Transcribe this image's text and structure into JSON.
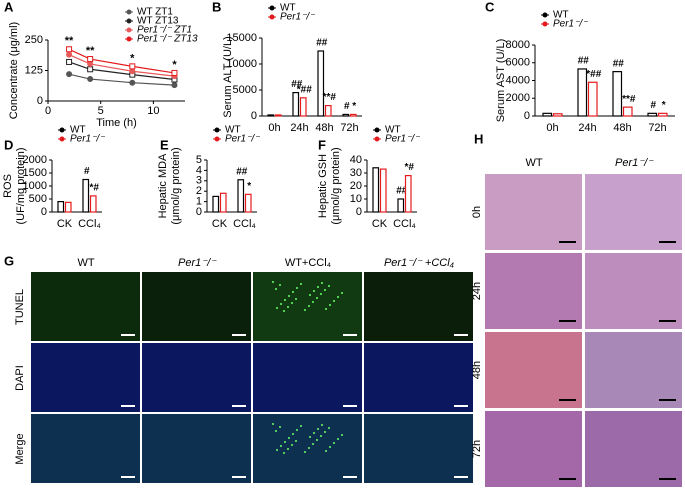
{
  "chart_data": [
    {
      "type": "line",
      "panel": "A",
      "xlabel": "Time (h)",
      "ylabel": [
        "Concentrate (μg/ml)"
      ],
      "x": [
        2,
        4,
        8,
        12
      ],
      "xlim": [
        0,
        13
      ],
      "xticks": [
        0,
        5,
        10
      ],
      "ylim": [
        0,
        250
      ],
      "yticks": [
        0,
        125,
        250
      ],
      "annotations": [
        "**",
        "**",
        "*",
        "*"
      ],
      "series": [
        {
          "name": "WT ZT1",
          "color": "#555555",
          "marker": "circle",
          "values": [
            110,
            90,
            75,
            65
          ]
        },
        {
          "name": "WT ZT13",
          "color": "#222222",
          "marker": "square",
          "values": [
            160,
            130,
            108,
            88
          ]
        },
        {
          "name": "Per1⁻/⁻ ZT1",
          "color": "#e8595a",
          "marker": "circle",
          "values": [
            190,
            152,
            122,
            102
          ]
        },
        {
          "name": "Per1⁻/⁻ ZT13",
          "color": "#e41a1c",
          "marker": "square",
          "values": [
            212,
            172,
            142,
            115
          ]
        }
      ]
    },
    {
      "type": "bar",
      "panel": "B",
      "ylabel": [
        "Serum ALT (U/L)"
      ],
      "categories": [
        "0h",
        "24h",
        "48h",
        "72h"
      ],
      "ylim": [
        0,
        15000
      ],
      "yticks": [
        0,
        5000,
        10000,
        15000
      ],
      "series": [
        {
          "name": "WT",
          "color": "#000000",
          "values": [
            200,
            4500,
            12500,
            300
          ],
          "significance": [
            null,
            "##",
            "##",
            "#"
          ]
        },
        {
          "name": "Per1⁻/⁻",
          "color": "#e41a1c",
          "values": [
            200,
            3500,
            2000,
            300
          ],
          "significance": [
            null,
            "*##",
            "**#",
            "*"
          ]
        }
      ]
    },
    {
      "type": "bar",
      "panel": "C",
      "ylabel": [
        "Serum AST (U/L)"
      ],
      "categories": [
        "0h",
        "24h",
        "48h",
        "72h"
      ],
      "ylim": [
        0,
        8000
      ],
      "yticks": [
        0,
        2000,
        4000,
        6000,
        8000
      ],
      "series": [
        {
          "name": "WT",
          "color": "#000000",
          "values": [
            300,
            5300,
            5000,
            300
          ],
          "significance": [
            null,
            "##",
            "##",
            "#"
          ]
        },
        {
          "name": "Per1⁻/⁻",
          "color": "#e41a1c",
          "values": [
            250,
            3800,
            1000,
            300
          ],
          "significance": [
            null,
            "*##",
            "**#",
            "*"
          ]
        }
      ]
    },
    {
      "type": "bar",
      "panel": "D",
      "ylabel": [
        "ROS",
        "(UF/mg protein)"
      ],
      "categories": [
        "CK",
        "CCl₄"
      ],
      "ylim": [
        0,
        2000
      ],
      "yticks": [
        0,
        500,
        1000,
        1500,
        2000
      ],
      "series": [
        {
          "name": "WT",
          "color": "#000000",
          "values": [
            400,
            1250
          ],
          "significance": [
            null,
            "#"
          ]
        },
        {
          "name": "Per1⁻/⁻",
          "color": "#e41a1c",
          "values": [
            370,
            620
          ],
          "significance": [
            null,
            "*#"
          ]
        }
      ]
    },
    {
      "type": "bar",
      "panel": "E",
      "ylabel": [
        "Hepatic MDA",
        "(μmol/g protein)"
      ],
      "categories": [
        "CK",
        "CCl₄"
      ],
      "ylim": [
        0,
        5
      ],
      "yticks": [
        0,
        1,
        2,
        3,
        4,
        5
      ],
      "series": [
        {
          "name": "WT",
          "color": "#000000",
          "values": [
            1.5,
            3.1
          ],
          "significance": [
            null,
            "##"
          ]
        },
        {
          "name": "Per1⁻/⁻",
          "color": "#e41a1c",
          "values": [
            1.8,
            1.7
          ],
          "significance": [
            null,
            "*"
          ]
        }
      ]
    },
    {
      "type": "bar",
      "panel": "F",
      "ylabel": [
        "Hepatic GSH",
        "(μmol/g protein)"
      ],
      "categories": [
        "CK",
        "CCl₄"
      ],
      "ylim": [
        0,
        40
      ],
      "yticks": [
        0,
        10,
        20,
        30,
        40
      ],
      "series": [
        {
          "name": "WT",
          "color": "#000000",
          "values": [
            34,
            10
          ],
          "significance": [
            null,
            "##"
          ]
        },
        {
          "name": "Per1⁻/⁻",
          "color": "#e41a1c",
          "values": [
            33,
            28
          ],
          "significance": [
            null,
            "*#"
          ]
        }
      ]
    }
  ],
  "panel_g": {
    "label": "G",
    "columns": [
      "WT",
      "Per1⁻/⁻",
      "WT+CCl₄",
      "Per1⁻/⁻ +CCl₄"
    ],
    "rows": [
      "TUNEL",
      "DAPI",
      "Merge"
    ]
  },
  "panel_h": {
    "label": "H",
    "columns": [
      "WT",
      "Per1⁻/⁻"
    ],
    "rows": [
      "0h",
      "24h",
      "48h",
      "72h"
    ]
  }
}
